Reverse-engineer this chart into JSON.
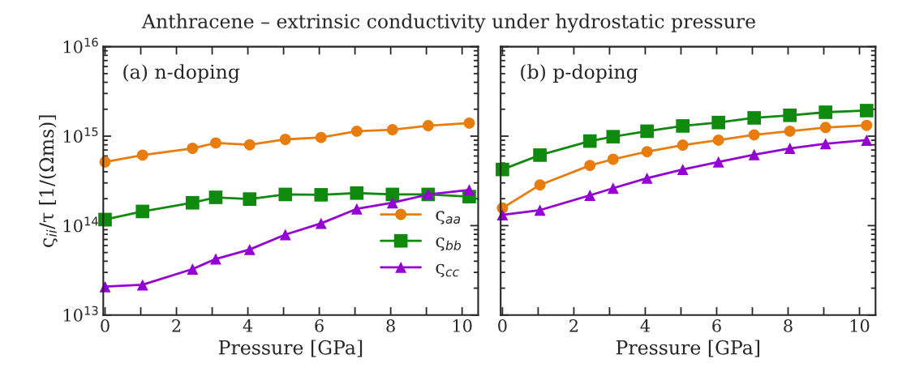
{
  "chart_data": [
    {
      "type": "line",
      "title": "Anthracene – extrinsic conductivity under hydrostatic pressure",
      "annotations": [
        "(a) n-doping"
      ],
      "xlabel": "Pressure [GPa]",
      "ylabel": "ς$_{ii}$/τ [1/(Ωms)]",
      "log": "y",
      "xlim": [
        -0.05,
        10.45
      ],
      "ylim": [
        10000000000000.0,
        1e+16
      ],
      "xticks": [
        0,
        {
          "value": 1,
          "label": null
        },
        2,
        {
          "value": 3,
          "label": null
        },
        4,
        {
          "value": 5,
          "label": null
        },
        6,
        {
          "value": 7,
          "label": null
        },
        8,
        {
          "value": 9,
          "label": null
        },
        10
      ],
      "yticks": [
        {
          "value": 10000000000000.0,
          "label": "10$^{13}$"
        },
        {
          "value": 100000000000000.0,
          "label": "10$^{14}$"
        },
        {
          "value": 1000000000000000.0,
          "label": "10$^{15}$"
        },
        {
          "value": 1e+16,
          "label": "10$^{16}$"
        }
      ],
      "x": [
        0,
        1.05,
        2.45,
        3.1,
        4.05,
        5.05,
        6.05,
        7.05,
        8.05,
        9.05,
        10.2
      ],
      "legend": "bottom right",
      "grid": false,
      "series": [
        {
          "name": "ς$_{aa}$",
          "color": "#e87d0d",
          "marker": "circle",
          "values": [
            515000000000000.0,
            614000000000000.0,
            731000000000000.0,
            839000000000000.0,
            800000000000000.0,
            920000000000000.0,
            966000000000000.0,
            1135000000000000.0,
            1180000000000000.0,
            1310000000000000.0,
            1400000000000000.0
          ]
        },
        {
          "name": "ς$_{bb}$",
          "color": "#0f8a0f",
          "marker": "square",
          "values": [
            117000000000000.0,
            144000000000000.0,
            180000000000000.0,
            207000000000000.0,
            198000000000000.0,
            223000000000000.0,
            221000000000000.0,
            231000000000000.0,
            223000000000000.0,
            223000000000000.0,
            211000000000000.0
          ]
        },
        {
          "name": "ς$_{cc}$",
          "color": "#9400d3",
          "marker": "triangle",
          "values": [
            20800000000000.0,
            21800000000000.0,
            32700000000000.0,
            42400000000000.0,
            54100000000000.0,
            79400000000000.0,
            106000000000000.0,
            154000000000000.0,
            180000000000000.0,
            223000000000000.0,
            251000000000000.0
          ]
        }
      ]
    },
    {
      "type": "line",
      "annotations": [
        "(b) p-doping"
      ],
      "xlabel": "Pressure [GPa]",
      "log": "y",
      "xlim": [
        -0.05,
        10.45
      ],
      "ylim": [
        10000000000000.0,
        1e+16
      ],
      "tick_labels": "x",
      "xticks": [
        0,
        {
          "value": 1,
          "label": null
        },
        2,
        {
          "value": 3,
          "label": null
        },
        4,
        {
          "value": 5,
          "label": null
        },
        6,
        {
          "value": 7,
          "label": null
        },
        8,
        {
          "value": 9,
          "label": null
        },
        10
      ],
      "yticks": [
        {
          "value": 10000000000000.0,
          "label": null
        },
        {
          "value": 100000000000000.0,
          "label": null
        },
        {
          "value": 1000000000000000.0,
          "label": null
        },
        {
          "value": 1e+16,
          "label": null
        }
      ],
      "x": [
        0,
        1.05,
        2.45,
        3.1,
        4.05,
        5.05,
        6.05,
        7.05,
        8.05,
        9.05,
        10.2
      ],
      "grid": false,
      "series": [
        {
          "color": "#e87d0d",
          "marker": "circle",
          "values": [
            157000000000000.0,
            285000000000000.0,
            471000000000000.0,
            552000000000000.0,
            671000000000000.0,
            794000000000000.0,
            902000000000000.0,
            1035000000000000.0,
            1135000000000000.0,
            1250000000000000.0,
            1320000000000000.0
          ]
        },
        {
          "color": "#0f8a0f",
          "marker": "square",
          "values": [
            424000000000000.0,
            614000000000000.0,
            881000000000000.0,
            986000000000000.0,
            1135000000000000.0,
            1300000000000000.0,
            1420000000000000.0,
            1600000000000000.0,
            1710000000000000.0,
            1850000000000000.0,
            1930000000000000.0
          ]
        },
        {
          "color": "#9400d3",
          "marker": "triangle",
          "values": [
            132000000000000.0,
            149000000000000.0,
            218000000000000.0,
            262000000000000.0,
            339000000000000.0,
            424000000000000.0,
            515000000000000.0,
            622000000000000.0,
            731000000000000.0,
            822000000000000.0,
            902000000000000.0
          ]
        }
      ]
    }
  ]
}
